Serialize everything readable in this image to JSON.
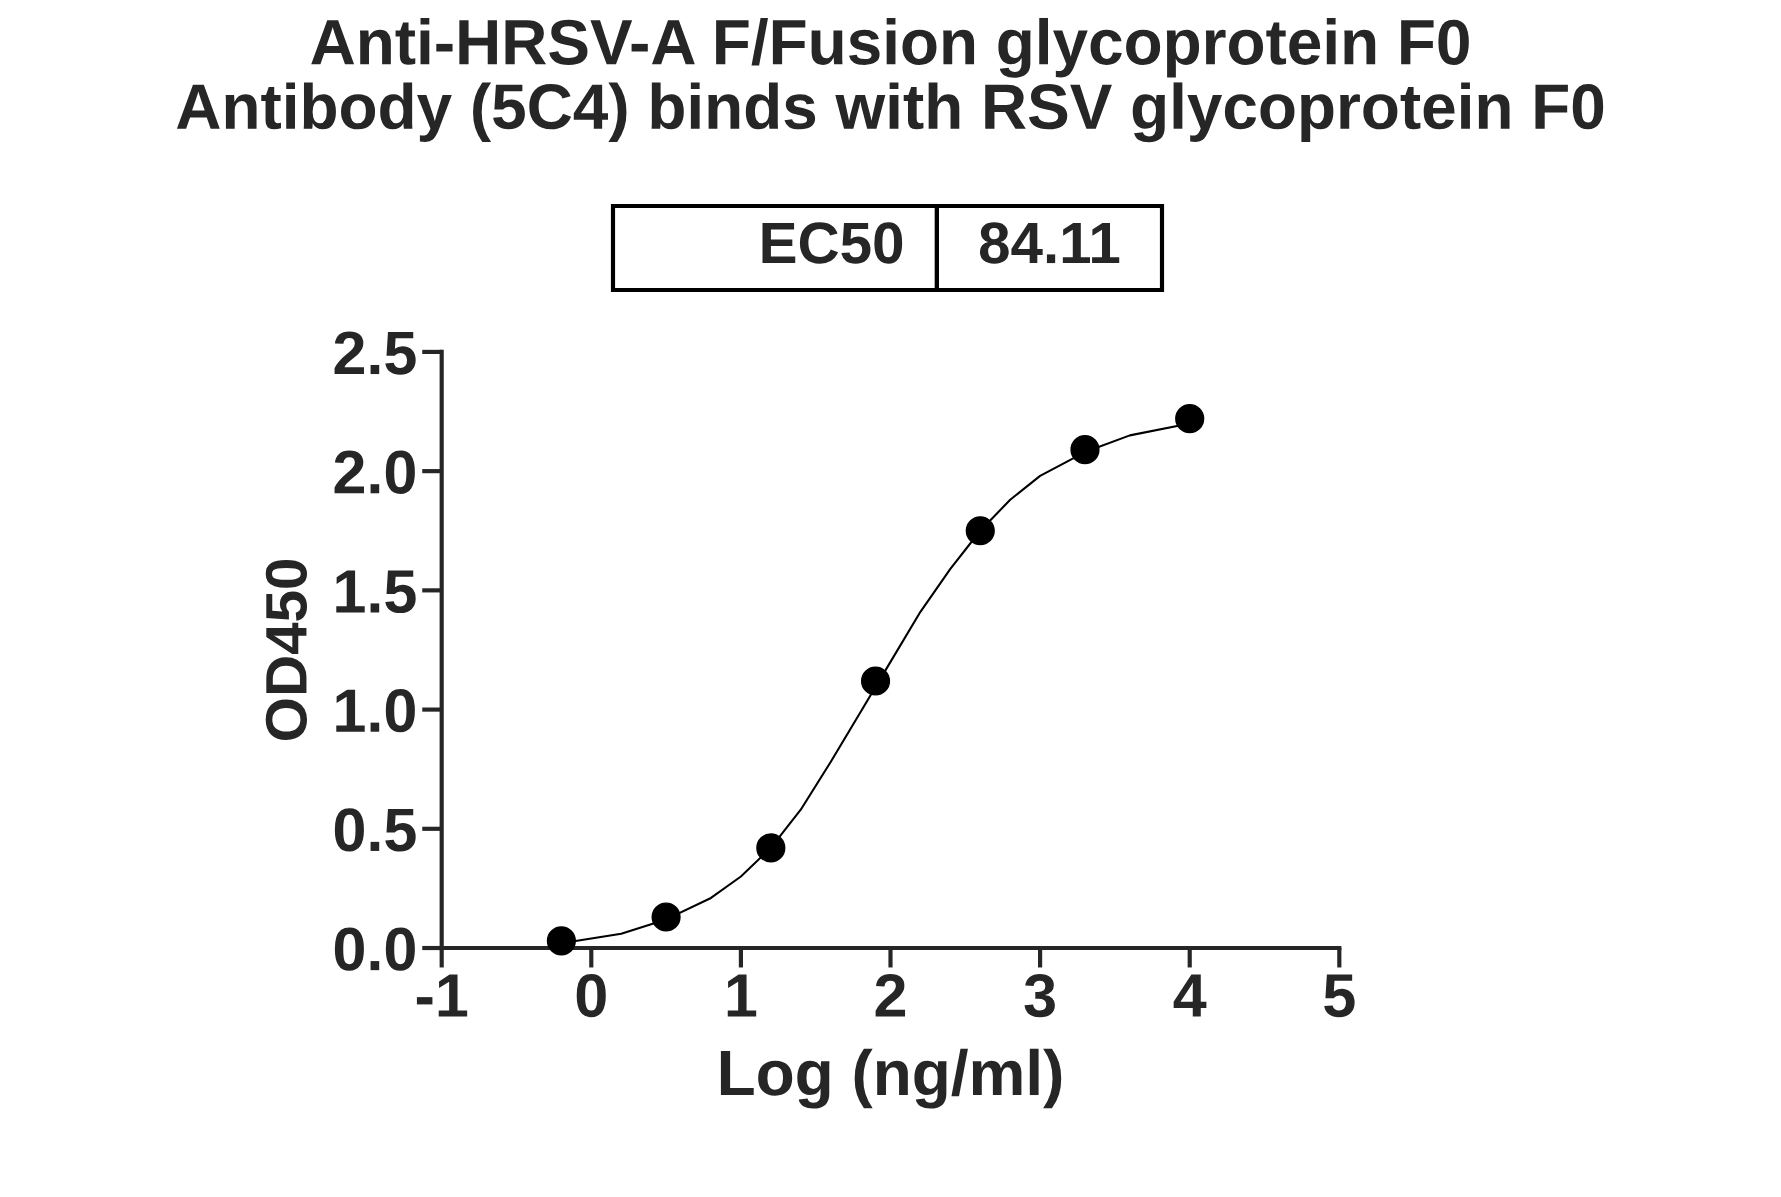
{
  "chart_data": {
    "type": "scatter",
    "title": "Anti-HRSV-A F/Fusion glycoprotein F0\nAntibody (5C4) binds with RSV glycoprotein F0",
    "xlabel": "Log (ng/ml)",
    "ylabel": "OD450",
    "annotations": [
      "EC50",
      "84.11"
    ],
    "series": [
      {
        "color": "#000000",
        "marker": "circle",
        "x": [
          -0.2,
          0.5,
          1.2,
          1.9,
          2.6,
          3.3,
          4.0
        ],
        "values": [
          0.03,
          0.13,
          0.42,
          1.12,
          1.75,
          2.09,
          2.22
        ]
      },
      {
        "type": "line",
        "color": "#000000",
        "line_style": "solid",
        "x": [
          -0.2,
          0.2,
          0.5,
          0.8,
          1.0,
          1.2,
          1.4,
          1.6,
          1.8,
          2.0,
          2.2,
          2.4,
          2.6,
          2.8,
          3.0,
          3.3,
          3.6,
          4.0
        ],
        "values": [
          0.02,
          0.06,
          0.12,
          0.21,
          0.3,
          0.42,
          0.58,
          0.78,
          0.99,
          1.2,
          1.41,
          1.59,
          1.75,
          1.88,
          1.98,
          2.08,
          2.15,
          2.2
        ]
      }
    ],
    "xlim": [
      -1,
      5
    ],
    "xticks": [
      -1,
      0,
      1,
      2,
      3,
      4,
      5
    ],
    "ylim": [
      0,
      2.5
    ],
    "yticks": [
      {
        "value": 0,
        "label": "0.0"
      },
      {
        "value": 0.5,
        "label": "0.5"
      },
      {
        "value": 1,
        "label": "1.0"
      },
      {
        "value": 1.5,
        "label": "1.5"
      },
      {
        "value": 2,
        "label": "2.0"
      },
      {
        "value": 2.5,
        "label": "2.5"
      }
    ],
    "grid": false,
    "legend": false
  }
}
